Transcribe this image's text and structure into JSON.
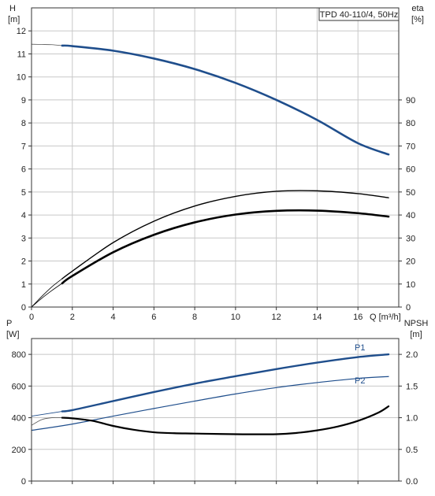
{
  "chart_data": [
    {
      "type": "line",
      "title": "TPD 40-110/4, 50Hz",
      "xlabel": "Q [m³/h]",
      "xlim": [
        0,
        18
      ],
      "x_ticks": [
        "0",
        "2",
        "4",
        "6",
        "8",
        "10",
        "12",
        "14",
        "16"
      ],
      "left_axis": {
        "label_line1": "H",
        "label_line2": "[m]",
        "lim": [
          0,
          13
        ],
        "ticks": [
          "0",
          "1",
          "2",
          "3",
          "4",
          "5",
          "6",
          "7",
          "8",
          "9",
          "10",
          "11",
          "12"
        ]
      },
      "right_axis": {
        "label_line1": "eta",
        "label_line2": "[%]",
        "lim": [
          0,
          130
        ],
        "ticks": [
          "0",
          "10",
          "20",
          "30",
          "40",
          "50",
          "60",
          "70",
          "80",
          "90"
        ]
      },
      "grid": true,
      "colors": {
        "head": "#1f4e8c",
        "efficiency": "#000000",
        "grid": "#c8c8c8"
      },
      "series": [
        {
          "axis": "left",
          "style": "head-thin",
          "x": [
            0,
            0.5,
            1.0,
            1.5
          ],
          "y": [
            11.42,
            11.41,
            11.4,
            11.36
          ]
        },
        {
          "axis": "left",
          "style": "head",
          "x": [
            1.5,
            2,
            4,
            6,
            8,
            10,
            12,
            14,
            16,
            17.5
          ],
          "y": [
            11.36,
            11.34,
            11.14,
            10.8,
            10.34,
            9.74,
            9.0,
            8.13,
            7.12,
            6.63
          ]
        },
        {
          "axis": "right",
          "style": "eff-thin-a",
          "x": [
            0,
            0.5,
            1.0,
            1.5
          ],
          "y": [
            0,
            4.6,
            8.8,
            12.3
          ]
        },
        {
          "axis": "right",
          "style": "eff-thin-b",
          "x": [
            0,
            0.5,
            1.0,
            1.5
          ],
          "y": [
            0,
            3.8,
            7.2,
            10.3
          ]
        },
        {
          "axis": "right",
          "style": "eff-upper",
          "x": [
            1.5,
            2,
            4,
            6,
            8,
            10,
            12,
            14,
            16,
            17.5
          ],
          "y": [
            12.3,
            15.6,
            28.0,
            37.3,
            43.9,
            48.1,
            50.3,
            50.5,
            49.3,
            47.5
          ]
        },
        {
          "axis": "right",
          "style": "eff-lower",
          "x": [
            1.5,
            2,
            4,
            6,
            8,
            10,
            12,
            14,
            16,
            17.5
          ],
          "y": [
            10.3,
            13.5,
            23.8,
            31.4,
            36.8,
            40.2,
            41.8,
            41.9,
            40.8,
            39.3
          ]
        }
      ]
    },
    {
      "type": "line",
      "xlim": [
        0,
        18
      ],
      "left_axis": {
        "label_line1": "P",
        "label_line2": "[W]",
        "lim": [
          0,
          900
        ],
        "ticks": [
          "0",
          "200",
          "400",
          "600",
          "800"
        ]
      },
      "right_axis": {
        "label_line1": "NPSH",
        "label_line2": "[m]",
        "lim": [
          0,
          2.25
        ],
        "ticks": [
          "0.0",
          "0.5",
          "1.0",
          "1.5",
          "2.0"
        ]
      },
      "grid": true,
      "colors": {
        "power": "#1f4e8c",
        "npsh": "#000000"
      },
      "series": [
        {
          "name": "P1",
          "axis": "left",
          "style": "p1",
          "x": [
            1.5,
            2,
            4,
            6,
            8,
            10,
            12,
            14,
            16,
            17.5
          ],
          "y": [
            440,
            448,
            505,
            562,
            615,
            662,
            707,
            748,
            783,
            800
          ]
        },
        {
          "axis": "left",
          "style": "p-thin",
          "x": [
            0,
            0.5,
            1.0,
            1.5
          ],
          "y": [
            410,
            420,
            430,
            440
          ]
        },
        {
          "name": "P2",
          "axis": "left",
          "style": "p2",
          "x": [
            0,
            2,
            4,
            6,
            8,
            10,
            12,
            14,
            16,
            17.5
          ],
          "y": [
            320,
            360,
            410,
            458,
            505,
            550,
            590,
            622,
            648,
            660
          ]
        },
        {
          "axis": "right",
          "style": "npsh-thin",
          "x": [
            0,
            0.5,
            1.0,
            1.5
          ],
          "y": [
            0.88,
            0.97,
            1.0,
            1.0
          ]
        },
        {
          "axis": "right",
          "style": "npsh",
          "x": [
            1.5,
            2,
            3,
            4,
            5,
            6,
            7,
            8,
            10,
            12,
            13,
            14,
            15,
            16,
            17,
            17.5
          ],
          "y": [
            1.0,
            0.99,
            0.95,
            0.87,
            0.81,
            0.77,
            0.755,
            0.75,
            0.74,
            0.74,
            0.76,
            0.8,
            0.86,
            0.95,
            1.08,
            1.18
          ]
        }
      ]
    }
  ]
}
